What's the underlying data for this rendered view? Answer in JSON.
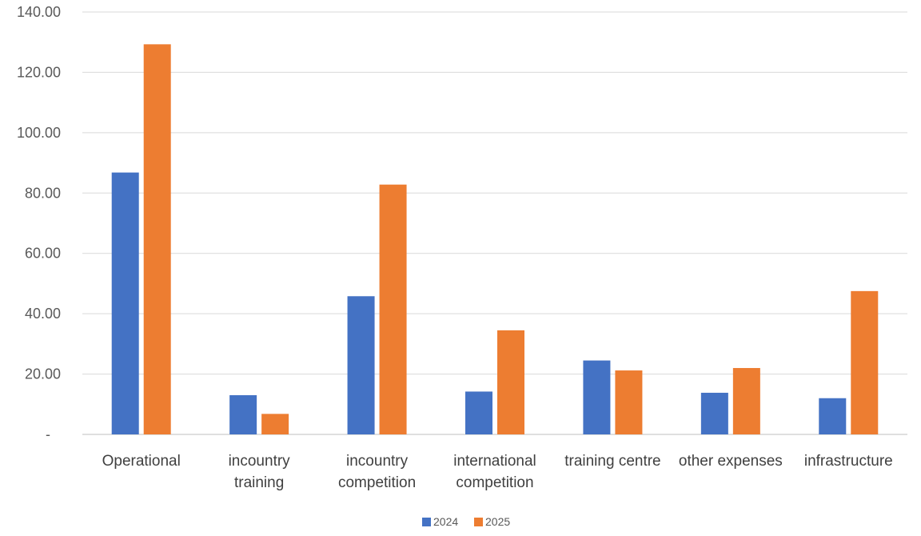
{
  "chart_data": {
    "type": "bar",
    "title": "",
    "categories": [
      [
        "Operational"
      ],
      [
        "incountry",
        "training"
      ],
      [
        "incountry",
        "competition"
      ],
      [
        "international",
        "competition"
      ],
      [
        "training centre"
      ],
      [
        "other expenses"
      ],
      [
        "infrastructure"
      ]
    ],
    "series": [
      {
        "name": "2024",
        "color": "#4472C4",
        "values": [
          86.8,
          13.0,
          45.8,
          14.2,
          24.5,
          13.8,
          12.0
        ]
      },
      {
        "name": "2025",
        "color": "#ED7D31",
        "values": [
          129.3,
          6.8,
          82.8,
          34.5,
          21.2,
          22.0,
          47.5
        ]
      }
    ],
    "ylim": [
      0,
      140
    ],
    "yticks": [
      "-",
      "20.00",
      "40.00",
      "60.00",
      "80.00",
      "100.00",
      "120.00",
      "140.00"
    ],
    "grid": true,
    "legend_position": "bottom"
  }
}
